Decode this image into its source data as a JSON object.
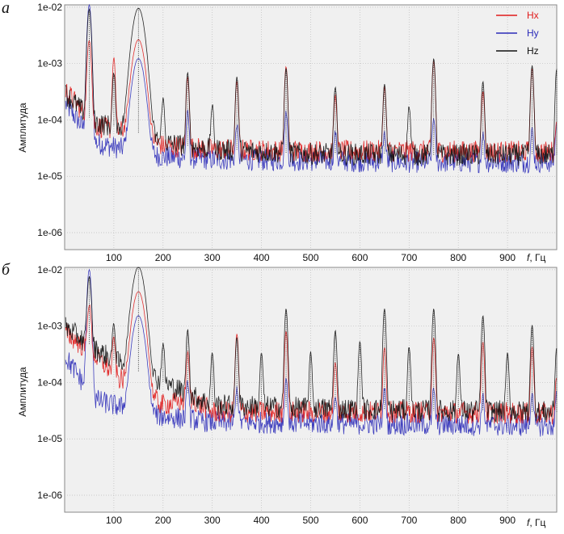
{
  "chart_data": [
    {
      "type": "line",
      "panel_label": "а",
      "xlabel_italic": "f",
      "xlabel_rest": ", Гц",
      "ylabel": "Амплитуда",
      "xlim": [
        0,
        1000
      ],
      "ylim": [
        5e-07,
        0.011
      ],
      "y_log": true,
      "grid": true,
      "x_ticks": [
        100,
        200,
        300,
        400,
        500,
        600,
        700,
        800,
        900
      ],
      "y_ticks": [
        0.01,
        0.001,
        0.0001,
        1e-05,
        1e-06
      ],
      "y_tick_labels": [
        "1e-02",
        "1e-03",
        "1e-04",
        "1e-05",
        "1e-06"
      ],
      "legend_position": "top-right",
      "series": [
        {
          "name": "Hx",
          "color": "#e01b1b",
          "base": [
            [
              0,
              0.00035
            ],
            [
              60,
              8e-05
            ],
            [
              120,
              6e-05
            ],
            [
              200,
              3.5e-05
            ],
            [
              300,
              3e-05
            ],
            [
              500,
              2.8e-05
            ],
            [
              700,
              2.8e-05
            ],
            [
              1000,
              2.7e-05
            ]
          ],
          "peaks": [
            [
              50,
              0.0025
            ],
            [
              100,
              0.0012
            ],
            [
              150,
              0.0026
            ],
            [
              250,
              0.00055
            ],
            [
              350,
              0.00045
            ],
            [
              450,
              0.00085
            ],
            [
              550,
              0.00025
            ],
            [
              650,
              0.00035
            ],
            [
              750,
              0.0011
            ],
            [
              850,
              0.0003
            ],
            [
              950,
              0.0008
            ],
            [
              1000,
              8e-05
            ]
          ]
        },
        {
          "name": "Hy",
          "color": "#2b2bb8",
          "base": [
            [
              0,
              0.0002
            ],
            [
              60,
              4e-05
            ],
            [
              120,
              3e-05
            ],
            [
              200,
              2.2e-05
            ],
            [
              300,
              2e-05
            ],
            [
              500,
              1.9e-05
            ],
            [
              700,
              1.8e-05
            ],
            [
              1000,
              1.8e-05
            ]
          ],
          "peaks": [
            [
              50,
              0.011
            ],
            [
              150,
              0.0012
            ],
            [
              250,
              0.00012
            ],
            [
              350,
              6e-05
            ],
            [
              450,
              0.00012
            ],
            [
              550,
              4e-05
            ],
            [
              650,
              4e-05
            ],
            [
              750,
              9e-05
            ],
            [
              850,
              4e-05
            ],
            [
              950,
              5e-05
            ],
            [
              1000,
              7e-05
            ]
          ]
        },
        {
          "name": "Hz",
          "color": "#111111",
          "base": [
            [
              0,
              0.0003
            ],
            [
              60,
              9e-05
            ],
            [
              120,
              7e-05
            ],
            [
              200,
              4e-05
            ],
            [
              300,
              3e-05
            ],
            [
              500,
              2.5e-05
            ],
            [
              700,
              2.4e-05
            ],
            [
              1000,
              2.4e-05
            ]
          ],
          "peaks": [
            [
              50,
              0.009
            ],
            [
              100,
              0.0006
            ],
            [
              150,
              0.0095
            ],
            [
              200,
              0.0002
            ],
            [
              250,
              0.00065
            ],
            [
              300,
              0.00015
            ],
            [
              350,
              0.00055
            ],
            [
              450,
              0.0008
            ],
            [
              550,
              0.00035
            ],
            [
              650,
              0.0004
            ],
            [
              700,
              0.00015
            ],
            [
              750,
              0.0012
            ],
            [
              850,
              0.00045
            ],
            [
              950,
              0.0009
            ],
            [
              1000,
              0.0008
            ]
          ]
        }
      ]
    },
    {
      "type": "line",
      "panel_label": "б",
      "xlabel_italic": "f",
      "xlabel_rest": ", Гц",
      "ylabel": "Амплитуда",
      "xlim": [
        0,
        1000
      ],
      "ylim": [
        5e-07,
        0.011
      ],
      "y_log": true,
      "grid": true,
      "x_ticks": [
        100,
        200,
        300,
        400,
        500,
        600,
        700,
        800,
        900
      ],
      "y_ticks": [
        0.01,
        0.001,
        0.0001,
        1e-05,
        1e-06
      ],
      "y_tick_labels": [
        "1e-02",
        "1e-03",
        "1e-04",
        "1e-05",
        "1e-06"
      ],
      "series": [
        {
          "name": "Hx",
          "color": "#e01b1b",
          "base": [
            [
              0,
              0.0008
            ],
            [
              60,
              0.0003
            ],
            [
              120,
              0.0001
            ],
            [
              200,
              4e-05
            ],
            [
              260,
              5e-05
            ],
            [
              300,
              3e-05
            ],
            [
              500,
              3e-05
            ],
            [
              700,
              3e-05
            ],
            [
              1000,
              2.8e-05
            ]
          ],
          "peaks": [
            [
              50,
              0.002
            ],
            [
              100,
              0.0005
            ],
            [
              150,
              0.004
            ],
            [
              250,
              0.0003
            ],
            [
              350,
              0.0007
            ],
            [
              450,
              0.0008
            ],
            [
              550,
              0.0002
            ],
            [
              650,
              0.0004
            ],
            [
              750,
              0.0006
            ],
            [
              850,
              0.0005
            ],
            [
              950,
              0.0004
            ],
            [
              1000,
              0.0001
            ]
          ]
        },
        {
          "name": "Hy",
          "color": "#2b2bb8",
          "base": [
            [
              0,
              0.0003
            ],
            [
              60,
              5e-05
            ],
            [
              120,
              3.5e-05
            ],
            [
              200,
              2.5e-05
            ],
            [
              300,
              2e-05
            ],
            [
              500,
              1.9e-05
            ],
            [
              700,
              1.8e-05
            ],
            [
              1000,
              1.7e-05
            ]
          ],
          "peaks": [
            [
              50,
              0.01
            ],
            [
              150,
              0.0015
            ],
            [
              250,
              8e-05
            ],
            [
              350,
              6e-05
            ],
            [
              450,
              0.0001
            ],
            [
              550,
              4e-05
            ],
            [
              650,
              6e-05
            ],
            [
              750,
              6e-05
            ],
            [
              850,
              4e-05
            ],
            [
              950,
              5e-05
            ],
            [
              1000,
              5e-05
            ]
          ]
        },
        {
          "name": "Hz",
          "color": "#111111",
          "base": [
            [
              0,
              0.001
            ],
            [
              60,
              0.0004
            ],
            [
              120,
              0.0002
            ],
            [
              200,
              0.0001
            ],
            [
              300,
              4e-05
            ],
            [
              500,
              3.5e-05
            ],
            [
              700,
              3.2e-05
            ],
            [
              1000,
              3e-05
            ]
          ],
          "peaks": [
            [
              50,
              0.007
            ],
            [
              100,
              0.0009
            ],
            [
              150,
              0.011
            ],
            [
              200,
              0.0004
            ],
            [
              250,
              0.0008
            ],
            [
              300,
              0.0003
            ],
            [
              350,
              0.0006
            ],
            [
              400,
              0.0003
            ],
            [
              450,
              0.002
            ],
            [
              500,
              0.0003
            ],
            [
              550,
              0.0008
            ],
            [
              600,
              0.0005
            ],
            [
              650,
              0.002
            ],
            [
              700,
              0.0004
            ],
            [
              750,
              0.002
            ],
            [
              800,
              0.0003
            ],
            [
              850,
              0.0015
            ],
            [
              900,
              0.0003
            ],
            [
              950,
              0.001
            ],
            [
              1000,
              0.0004
            ]
          ]
        }
      ]
    }
  ]
}
